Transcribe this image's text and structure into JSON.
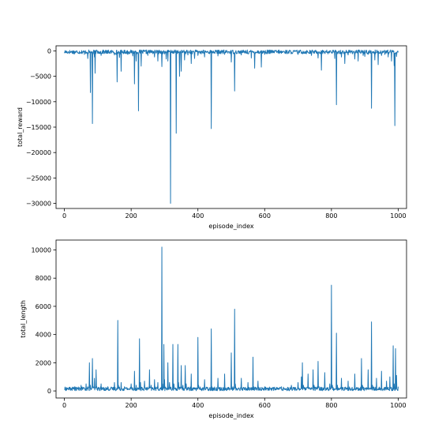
{
  "chart_data": [
    {
      "type": "line",
      "xlabel": "episode_index",
      "ylabel": "total_reward",
      "xlim": [
        -25,
        1025
      ],
      "ylim": [
        -31000,
        1000
      ],
      "xticks": [
        0,
        200,
        400,
        600,
        800,
        1000
      ],
      "yticks": [
        0,
        -5000,
        -10000,
        -15000,
        -20000,
        -25000,
        -30000
      ],
      "grid": false,
      "color": "#1f77b4",
      "series": [
        {
          "baseline": -200,
          "points": [
            [
              0,
              -250
            ],
            [
              10,
              -450
            ],
            [
              20,
              -180
            ],
            [
              30,
              -600
            ],
            [
              40,
              -300
            ],
            [
              50,
              -250
            ],
            [
              60,
              -700
            ],
            [
              65,
              -300
            ],
            [
              70,
              -1500
            ],
            [
              75,
              -300
            ],
            [
              78,
              -8200
            ],
            [
              80,
              -400
            ],
            [
              84,
              -14300
            ],
            [
              86,
              -600
            ],
            [
              90,
              -1200
            ],
            [
              92,
              -4400
            ],
            [
              95,
              -300
            ],
            [
              110,
              -900
            ],
            [
              130,
              -500
            ],
            [
              150,
              -800
            ],
            [
              155,
              -700
            ],
            [
              158,
              -6100
            ],
            [
              160,
              -300
            ],
            [
              165,
              -1300
            ],
            [
              170,
              -4000
            ],
            [
              175,
              -400
            ],
            [
              190,
              -700
            ],
            [
              205,
              -1000
            ],
            [
              210,
              -6500
            ],
            [
              215,
              -2000
            ],
            [
              222,
              -11800
            ],
            [
              224,
              -300
            ],
            [
              230,
              -3000
            ],
            [
              250,
              -900
            ],
            [
              270,
              -1200
            ],
            [
              280,
              -2000
            ],
            [
              292,
              -3100
            ],
            [
              300,
              -600
            ],
            [
              305,
              -1600
            ],
            [
              310,
              -2000
            ],
            [
              318,
              -30000
            ],
            [
              322,
              -300
            ],
            [
              335,
              -16200
            ],
            [
              338,
              -400
            ],
            [
              345,
              -5000
            ],
            [
              350,
              -4000
            ],
            [
              360,
              -1800
            ],
            [
              370,
              -800
            ],
            [
              380,
              -2500
            ],
            [
              390,
              -1500
            ],
            [
              400,
              -900
            ],
            [
              410,
              -600
            ],
            [
              420,
              -1200
            ],
            [
              440,
              -15300
            ],
            [
              442,
              -300
            ],
            [
              460,
              -1000
            ],
            [
              480,
              -700
            ],
            [
              500,
              -2200
            ],
            [
              510,
              -7900
            ],
            [
              512,
              -300
            ],
            [
              530,
              -800
            ],
            [
              550,
              -600
            ],
            [
              560,
              -1400
            ],
            [
              570,
              -3400
            ],
            [
              575,
              -300
            ],
            [
              590,
              -3200
            ],
            [
              600,
              -700
            ],
            [
              620,
              -400
            ],
            [
              650,
              -500
            ],
            [
              680,
              -300
            ],
            [
              700,
              -700
            ],
            [
              720,
              -500
            ],
            [
              740,
              -900
            ],
            [
              760,
              -1400
            ],
            [
              770,
              -3800
            ],
            [
              772,
              -300
            ],
            [
              790,
              -600
            ],
            [
              810,
              -1500
            ],
            [
              815,
              -10600
            ],
            [
              818,
              -300
            ],
            [
              830,
              -1200
            ],
            [
              840,
              -2500
            ],
            [
              850,
              -800
            ],
            [
              870,
              -1600
            ],
            [
              880,
              -2000
            ],
            [
              895,
              -900
            ],
            [
              900,
              -1100
            ],
            [
              910,
              -700
            ],
            [
              920,
              -11300
            ],
            [
              922,
              -300
            ],
            [
              930,
              -1800
            ],
            [
              940,
              -2700
            ],
            [
              950,
              -900
            ],
            [
              960,
              -700
            ],
            [
              970,
              -1200
            ],
            [
              980,
              -2000
            ],
            [
              988,
              -2900
            ],
            [
              990,
              -14700
            ],
            [
              992,
              -400
            ],
            [
              995,
              -1100
            ],
            [
              1000,
              -300
            ]
          ]
        }
      ]
    },
    {
      "type": "line",
      "xlabel": "episode_index",
      "ylabel": "total_length",
      "xlim": [
        -25,
        1025
      ],
      "ylim": [
        -500,
        10700
      ],
      "xticks": [
        0,
        200,
        400,
        600,
        800,
        1000
      ],
      "yticks": [
        0,
        2000,
        4000,
        6000,
        8000,
        10000
      ],
      "grid": false,
      "color": "#1f77b4",
      "series": [
        {
          "baseline": 150,
          "points": [
            [
              0,
              100
            ],
            [
              10,
              200
            ],
            [
              20,
              150
            ],
            [
              30,
              300
            ],
            [
              40,
              200
            ],
            [
              50,
              400
            ],
            [
              60,
              200
            ],
            [
              65,
              500
            ],
            [
              70,
              300
            ],
            [
              75,
              2000
            ],
            [
              78,
              400
            ],
            [
              84,
              2300
            ],
            [
              86,
              300
            ],
            [
              90,
              900
            ],
            [
              95,
              1500
            ],
            [
              97,
              300
            ],
            [
              110,
              500
            ],
            [
              130,
              300
            ],
            [
              150,
              600
            ],
            [
              160,
              5000
            ],
            [
              162,
              400
            ],
            [
              170,
              600
            ],
            [
              180,
              300
            ],
            [
              200,
              500
            ],
            [
              210,
              1400
            ],
            [
              215,
              400
            ],
            [
              225,
              3700
            ],
            [
              228,
              600
            ],
            [
              240,
              700
            ],
            [
              255,
              1500
            ],
            [
              260,
              400
            ],
            [
              270,
              800
            ],
            [
              280,
              600
            ],
            [
              292,
              10200
            ],
            [
              294,
              500
            ],
            [
              298,
              3300
            ],
            [
              300,
              800
            ],
            [
              310,
              2000
            ],
            [
              315,
              600
            ],
            [
              325,
              3300
            ],
            [
              328,
              500
            ],
            [
              340,
              3300
            ],
            [
              342,
              600
            ],
            [
              350,
              1800
            ],
            [
              355,
              400
            ],
            [
              362,
              1800
            ],
            [
              365,
              500
            ],
            [
              380,
              1200
            ],
            [
              400,
              3800
            ],
            [
              402,
              400
            ],
            [
              420,
              800
            ],
            [
              440,
              4400
            ],
            [
              442,
              300
            ],
            [
              460,
              900
            ],
            [
              480,
              1200
            ],
            [
              500,
              2700
            ],
            [
              505,
              300
            ],
            [
              510,
              5800
            ],
            [
              512,
              500
            ],
            [
              530,
              900
            ],
            [
              550,
              600
            ],
            [
              565,
              2400
            ],
            [
              567,
              300
            ],
            [
              580,
              700
            ],
            [
              600,
              300
            ],
            [
              620,
              200
            ],
            [
              650,
              300
            ],
            [
              680,
              400
            ],
            [
              700,
              600
            ],
            [
              710,
              1000
            ],
            [
              713,
              2000
            ],
            [
              716,
              400
            ],
            [
              730,
              1200
            ],
            [
              745,
              1500
            ],
            [
              748,
              400
            ],
            [
              760,
              2100
            ],
            [
              763,
              300
            ],
            [
              780,
              1300
            ],
            [
              795,
              500
            ],
            [
              800,
              7500
            ],
            [
              803,
              400
            ],
            [
              815,
              4100
            ],
            [
              818,
              400
            ],
            [
              830,
              900
            ],
            [
              850,
              700
            ],
            [
              870,
              1200
            ],
            [
              890,
              2300
            ],
            [
              893,
              400
            ],
            [
              910,
              1500
            ],
            [
              920,
              4900
            ],
            [
              923,
              400
            ],
            [
              935,
              900
            ],
            [
              950,
              1400
            ],
            [
              965,
              700
            ],
            [
              975,
              1000
            ],
            [
              985,
              3200
            ],
            [
              988,
              500
            ],
            [
              992,
              3000
            ],
            [
              995,
              1100
            ],
            [
              1000,
              300
            ]
          ]
        }
      ]
    }
  ]
}
